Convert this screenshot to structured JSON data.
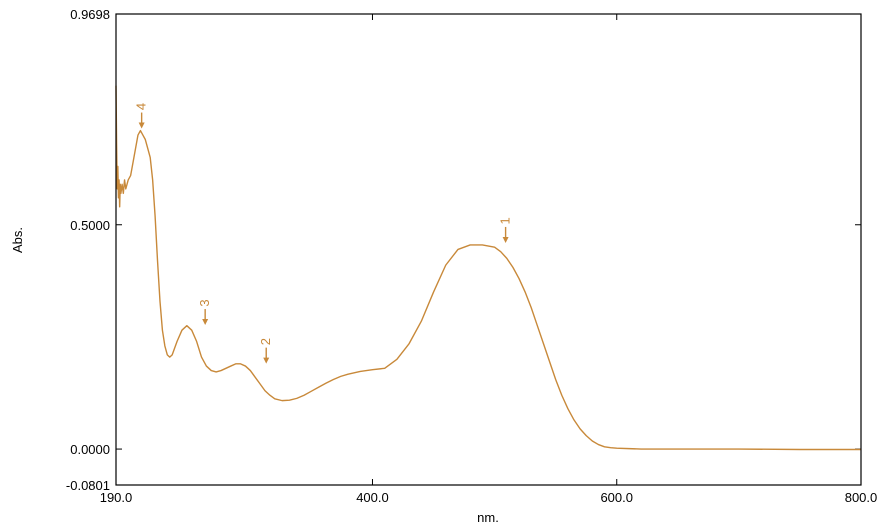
{
  "chart_data": {
    "type": "line",
    "title": "",
    "xlabel": "nm.",
    "ylabel": "Abs.",
    "xlim": [
      190.0,
      800.0
    ],
    "ylim": [
      -0.0801,
      0.9698
    ],
    "grid": false,
    "x_ticks": [
      {
        "value": 190.0,
        "label": "190.0"
      },
      {
        "value": 400.0,
        "label": "400.0"
      },
      {
        "value": 600.0,
        "label": "600.0"
      },
      {
        "value": 800.0,
        "label": "800.0"
      }
    ],
    "y_ticks": [
      {
        "value": 0.9698,
        "label": "0.9698"
      },
      {
        "value": 0.5,
        "label": "0.5000"
      },
      {
        "value": 0.0,
        "label": "0.0000"
      },
      {
        "value": -0.0801,
        "label": "-0.0801"
      }
    ],
    "line_color": "#c8893a",
    "series": [
      {
        "x": [
          190,
          190.5,
          191,
          191.5,
          192,
          192.5,
          193,
          193.5,
          194,
          195,
          196,
          197,
          198,
          199,
          200,
          202,
          204,
          206,
          208,
          210,
          212,
          214,
          216,
          218,
          220,
          222,
          224,
          226,
          228,
          230,
          232,
          234,
          236,
          238,
          240,
          244,
          248,
          252,
          256,
          260,
          264,
          268,
          272,
          276,
          280,
          284,
          288,
          292,
          296,
          300,
          304,
          308,
          312,
          316,
          320,
          326,
          332,
          338,
          344,
          350,
          356,
          362,
          368,
          374,
          380,
          390,
          400,
          410,
          420,
          430,
          440,
          450,
          460,
          470,
          480,
          490,
          500,
          505,
          510,
          515,
          520,
          525,
          530,
          535,
          540,
          545,
          550,
          555,
          560,
          565,
          570,
          575,
          580,
          585,
          590,
          595,
          600,
          610,
          620,
          650,
          700,
          750,
          790,
          800
        ],
        "y": [
          0.81,
          0.68,
          0.58,
          0.63,
          0.56,
          0.6,
          0.54,
          0.59,
          0.57,
          0.59,
          0.57,
          0.6,
          0.58,
          0.59,
          0.6,
          0.61,
          0.64,
          0.67,
          0.7,
          0.71,
          0.7,
          0.69,
          0.67,
          0.65,
          0.6,
          0.52,
          0.42,
          0.33,
          0.265,
          0.23,
          0.21,
          0.205,
          0.21,
          0.225,
          0.24,
          0.265,
          0.275,
          0.265,
          0.24,
          0.205,
          0.185,
          0.175,
          0.172,
          0.175,
          0.18,
          0.185,
          0.19,
          0.19,
          0.185,
          0.175,
          0.16,
          0.145,
          0.13,
          0.12,
          0.112,
          0.108,
          0.109,
          0.113,
          0.12,
          0.129,
          0.138,
          0.147,
          0.155,
          0.162,
          0.167,
          0.173,
          0.177,
          0.18,
          0.2,
          0.235,
          0.285,
          0.35,
          0.41,
          0.445,
          0.455,
          0.455,
          0.45,
          0.44,
          0.425,
          0.405,
          0.38,
          0.35,
          0.315,
          0.275,
          0.235,
          0.195,
          0.155,
          0.12,
          0.09,
          0.065,
          0.045,
          0.03,
          0.018,
          0.01,
          0.005,
          0.003,
          0.002,
          0.001,
          0.0,
          0.0,
          0.0,
          -0.001,
          -0.001,
          -0.001
        ]
      }
    ],
    "annotations": [
      {
        "label": "1",
        "x": 509,
        "y": 0.455
      },
      {
        "label": "2",
        "x": 313,
        "y": 0.186
      },
      {
        "label": "3",
        "x": 263,
        "y": 0.272
      },
      {
        "label": "4",
        "x": 211,
        "y": 0.71
      }
    ]
  }
}
